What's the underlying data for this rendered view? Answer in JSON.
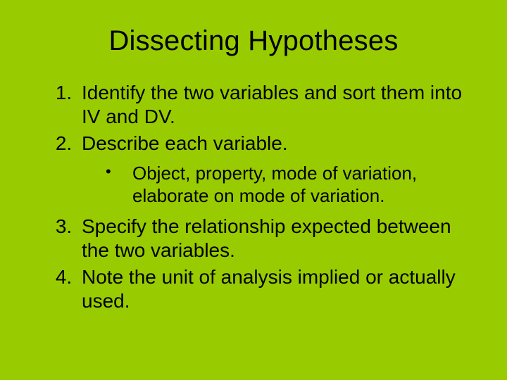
{
  "slide": {
    "background_color": "#99cc00",
    "text_color": "#000000",
    "title": "Dissecting Hypotheses",
    "title_fontsize": 40,
    "body_fontsize": 28,
    "sub_fontsize": 26,
    "items": [
      {
        "number": "1.",
        "text": "Identify the two variables and sort them into IV and DV."
      },
      {
        "number": "2.",
        "text": "Describe each variable."
      },
      {
        "number": "3.",
        "text": "Specify the relationship expected between the two variables."
      },
      {
        "number": "4.",
        "text": "Note the unit of analysis implied or actually used."
      }
    ],
    "subitem_after_index": 1,
    "subitems": [
      "Object, property, mode of variation, elaborate on mode of variation."
    ]
  }
}
